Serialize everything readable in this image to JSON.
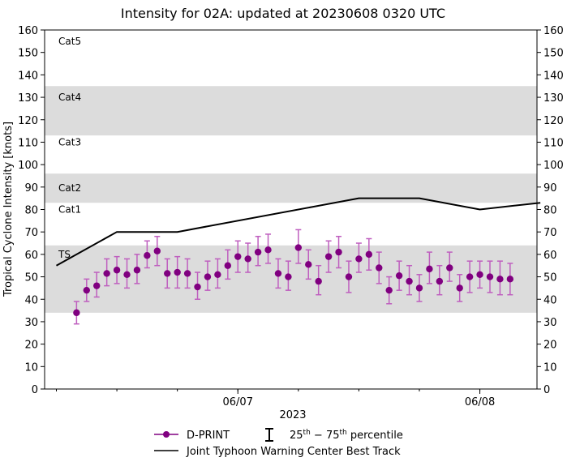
{
  "chart_data": {
    "type": "scatter",
    "title": "Intensity for 02A: updated at 20230608 0320 UTC",
    "xlabel": "2023",
    "ylabel": "Tropical Cyclone Intensity [knots]",
    "ylim": [
      0,
      160
    ],
    "yticks": [
      0,
      10,
      20,
      30,
      40,
      50,
      60,
      70,
      80,
      90,
      100,
      110,
      120,
      130,
      140,
      150,
      160
    ],
    "xlim": [
      "2023-06-06 04:50",
      "2023-06-08 05:40"
    ],
    "xticks": [
      {
        "x": "2023-06-07 00:00",
        "label": "06/07"
      },
      {
        "x": "2023-06-08 00:00",
        "label": "06/08"
      }
    ],
    "grid": false,
    "legend_position": "bottom",
    "bands": [
      {
        "label": "TS",
        "from": 34,
        "to": 64,
        "shaded": true
      },
      {
        "label": "Cat1",
        "from": 64,
        "to": 83,
        "shaded": false
      },
      {
        "label": "Cat2",
        "from": 83,
        "to": 96,
        "shaded": true
      },
      {
        "label": "Cat3",
        "from": 96,
        "to": 113,
        "shaded": false
      },
      {
        "label": "Cat4",
        "from": 113,
        "to": 135,
        "shaded": true
      },
      {
        "label": "Cat5",
        "from": 135,
        "to": 160,
        "shaded": false
      }
    ],
    "colors": {
      "dprint": "#800080",
      "errorbar": "#bf5fbf",
      "band": "#dcdcdc",
      "besttrack": "#000000"
    },
    "series": [
      {
        "name": "D-PRINT",
        "type": "scatter_errorbar",
        "x": [
          "2023-06-06 08:00",
          "2023-06-06 09:00",
          "2023-06-06 10:00",
          "2023-06-06 11:00",
          "2023-06-06 12:00",
          "2023-06-06 13:00",
          "2023-06-06 14:00",
          "2023-06-06 15:00",
          "2023-06-06 16:00",
          "2023-06-06 17:00",
          "2023-06-06 18:00",
          "2023-06-06 19:00",
          "2023-06-06 20:00",
          "2023-06-06 21:00",
          "2023-06-06 22:00",
          "2023-06-06 23:00",
          "2023-06-07 00:00",
          "2023-06-07 01:00",
          "2023-06-07 02:00",
          "2023-06-07 03:00",
          "2023-06-07 04:00",
          "2023-06-07 05:00",
          "2023-06-07 06:00",
          "2023-06-07 07:00",
          "2023-06-07 08:00",
          "2023-06-07 09:00",
          "2023-06-07 10:00",
          "2023-06-07 11:00",
          "2023-06-07 12:00",
          "2023-06-07 13:00",
          "2023-06-07 14:00",
          "2023-06-07 15:00",
          "2023-06-07 16:00",
          "2023-06-07 17:00",
          "2023-06-07 18:00",
          "2023-06-07 19:00",
          "2023-06-07 20:00",
          "2023-06-07 21:00",
          "2023-06-07 22:00",
          "2023-06-07 23:00",
          "2023-06-08 00:00",
          "2023-06-08 01:00",
          "2023-06-08 02:00",
          "2023-06-08 03:00"
        ],
        "y": [
          34,
          44,
          46,
          51.5,
          53,
          51,
          53,
          59.5,
          61.5,
          51.5,
          52,
          51.5,
          45.5,
          50,
          51,
          55,
          59,
          58,
          61,
          62,
          51.5,
          50,
          63,
          55.5,
          48,
          59,
          61,
          50,
          58,
          60,
          54,
          44,
          50.5,
          48,
          45,
          53.5,
          48,
          54,
          45,
          50,
          51,
          50,
          49,
          49
        ],
        "p25": [
          29,
          39,
          41,
          46,
          47,
          45,
          47,
          54,
          55,
          45,
          45,
          45,
          40,
          44,
          45,
          49,
          52,
          52,
          55,
          56,
          45,
          44,
          56,
          49,
          42,
          52,
          54,
          43,
          52,
          53,
          47,
          38,
          44,
          42,
          39,
          47,
          42,
          48,
          39,
          43,
          45,
          43,
          42,
          42
        ],
        "p75": [
          39,
          49,
          52,
          58,
          59,
          58,
          60,
          66,
          68,
          58,
          59,
          58,
          52,
          57,
          58,
          62,
          66,
          65,
          68,
          69,
          58,
          57,
          71,
          62,
          55,
          66,
          68,
          57,
          65,
          67,
          61,
          50,
          57,
          55,
          51,
          61,
          55,
          61,
          51,
          57,
          57,
          57,
          57,
          56
        ]
      },
      {
        "name": "Joint Typhoon Warning Center Best Track",
        "type": "line",
        "x": [
          "2023-06-06 06:00",
          "2023-06-06 12:00",
          "2023-06-06 18:00",
          "2023-06-07 12:00",
          "2023-06-07 18:00",
          "2023-06-08 00:00",
          "2023-06-08 06:00"
        ],
        "y": [
          55,
          70,
          70,
          85,
          85,
          80,
          83
        ]
      }
    ],
    "legend": {
      "dprint": "D-PRINT",
      "percentile_prefix_a": "25",
      "percentile_sup_a": "th",
      "percentile_mid": " − 75",
      "percentile_sup_b": "th",
      "percentile_suffix": " percentile",
      "besttrack": "Joint Typhoon Warning Center Best Track"
    }
  }
}
